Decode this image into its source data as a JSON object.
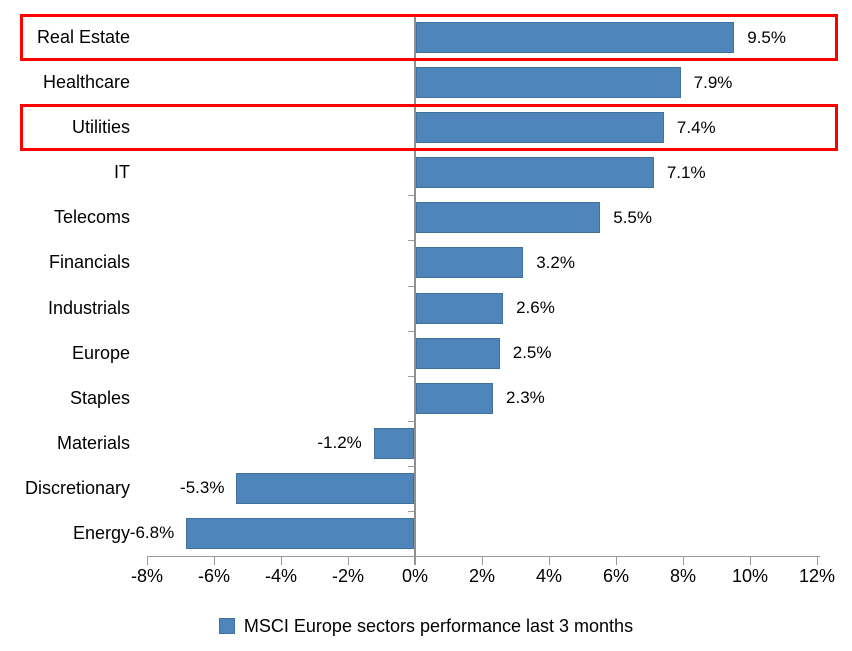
{
  "chart_data": {
    "type": "bar",
    "orientation": "horizontal",
    "title": "",
    "categories": [
      "Real Estate",
      "Healthcare",
      "Utilities",
      "IT",
      "Telecoms",
      "Financials",
      "Industrials",
      "Europe",
      "Staples",
      "Materials",
      "Discretionary",
      "Energy"
    ],
    "values": [
      9.5,
      7.9,
      7.4,
      7.1,
      5.5,
      3.2,
      2.6,
      2.5,
      2.3,
      -1.2,
      -5.3,
      -6.8
    ],
    "value_labels": [
      "9.5%",
      "7.9%",
      "7.4%",
      "7.1%",
      "5.5%",
      "3.2%",
      "2.6%",
      "2.5%",
      "2.3%",
      "-1.2%",
      "-5.3%",
      "-6.8%"
    ],
    "x_axis": {
      "min": -8,
      "max": 12,
      "step": 2,
      "ticks": [
        "-8%",
        "-6%",
        "-4%",
        "-2%",
        "0%",
        "2%",
        "4%",
        "6%",
        "8%",
        "10%",
        "12%"
      ]
    },
    "grid": false,
    "bar_color": "#4E86BC",
    "bar_border_color": "#41719C",
    "axis_color": "#9A9A9A",
    "highlight_color": "#FF0000",
    "highlighted_categories": [
      "Real Estate",
      "Utilities"
    ],
    "legend": {
      "position": "bottom",
      "marker": "square-icon",
      "label": "MSCI Europe sectors performance last 3 months"
    }
  }
}
